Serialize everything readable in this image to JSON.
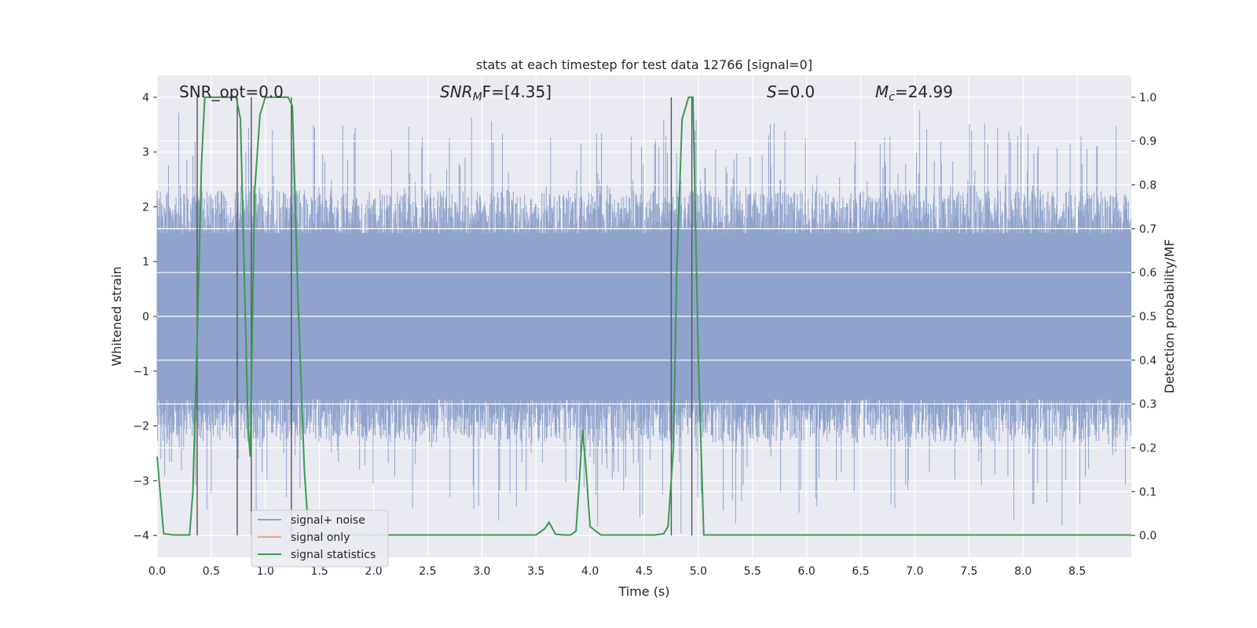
{
  "chart_data": {
    "type": "line",
    "title": "stats at each timestep for test data 12766 [signal=0]",
    "xlabel": "Time (s)",
    "ylabel_left": "Whitened strain",
    "ylabel_right": "Detection probability/MF",
    "xlim": [
      0.0,
      9.0
    ],
    "ylim_left": [
      -4.4,
      4.4
    ],
    "ylim_right": [
      -0.05,
      1.05
    ],
    "x_ticks": [
      "0.0",
      "0.5",
      "1.0",
      "1.5",
      "2.0",
      "2.5",
      "3.0",
      "3.5",
      "4.0",
      "4.5",
      "5.0",
      "5.5",
      "6.0",
      "6.5",
      "7.0",
      "7.5",
      "8.0",
      "8.5"
    ],
    "y_ticks_left": [
      "−4",
      "−3",
      "−2",
      "−1",
      "0",
      "1",
      "2",
      "3",
      "4"
    ],
    "y_ticks_right": [
      "0.0",
      "0.1",
      "0.2",
      "0.3",
      "0.4",
      "0.5",
      "0.6",
      "0.7",
      "0.8",
      "0.9",
      "1.0"
    ],
    "grid": true,
    "legend_position": "lower-left",
    "annotations": {
      "snr_opt": "SNR_opt=0.0",
      "snr_mf_base": "SNR",
      "snr_mf_sub": "M",
      "snr_mf_rest": "F=[4.35]",
      "s_italic": "S",
      "s_rest": "=0.0",
      "mc_base": "M",
      "mc_sub": "c",
      "mc_rest": "=24.99"
    },
    "series": [
      {
        "name": "signal+ noise",
        "color": "#8fa3cc",
        "description": "whitened strain noise, approx amplitude envelope",
        "noise_envelope": {
          "core": 1.6,
          "peaks_max": 4.0,
          "samples": 1800
        }
      },
      {
        "name": "signal only",
        "color": "#e8a989",
        "values": []
      },
      {
        "name": "signal statistics",
        "color": "#3c9a50",
        "x": [
          0.0,
          0.06,
          0.15,
          0.25,
          0.3,
          0.33,
          0.37,
          0.41,
          0.44,
          0.5,
          0.6,
          0.67,
          0.73,
          0.77,
          0.82,
          0.84,
          0.86,
          0.9,
          0.95,
          1.0,
          1.05,
          1.12,
          1.18,
          1.21,
          1.25,
          1.3,
          1.36,
          1.4,
          1.6,
          2.0,
          2.5,
          3.0,
          3.5,
          3.58,
          3.62,
          3.68,
          3.75,
          3.82,
          3.87,
          3.9,
          3.93,
          3.96,
          4.0,
          4.1,
          4.4,
          4.6,
          4.68,
          4.72,
          4.77,
          4.8,
          4.85,
          4.91,
          4.95,
          5.0,
          5.05,
          5.5,
          6.0,
          7.0,
          8.0,
          9.0
        ],
        "values": [
          0.18,
          0.004,
          0.001,
          0.001,
          0.001,
          0.1,
          0.45,
          0.85,
          1.0,
          1.0,
          1.0,
          1.0,
          1.0,
          0.95,
          0.45,
          0.25,
          0.18,
          0.78,
          0.96,
          1.0,
          1.0,
          1.0,
          1.0,
          1.0,
          0.98,
          0.55,
          0.15,
          0.001,
          0.001,
          0.001,
          0.001,
          0.001,
          0.001,
          0.015,
          0.03,
          0.003,
          0.001,
          0.001,
          0.01,
          0.12,
          0.24,
          0.16,
          0.02,
          0.001,
          0.001,
          0.001,
          0.004,
          0.02,
          0.2,
          0.6,
          0.95,
          1.0,
          1.0,
          0.4,
          0.001,
          0.001,
          0.001,
          0.001,
          0.001,
          0.001
        ]
      }
    ],
    "vertical_lines_x": [
      0.37,
      0.74,
      0.87,
      1.24,
      4.75,
      4.94
    ]
  }
}
